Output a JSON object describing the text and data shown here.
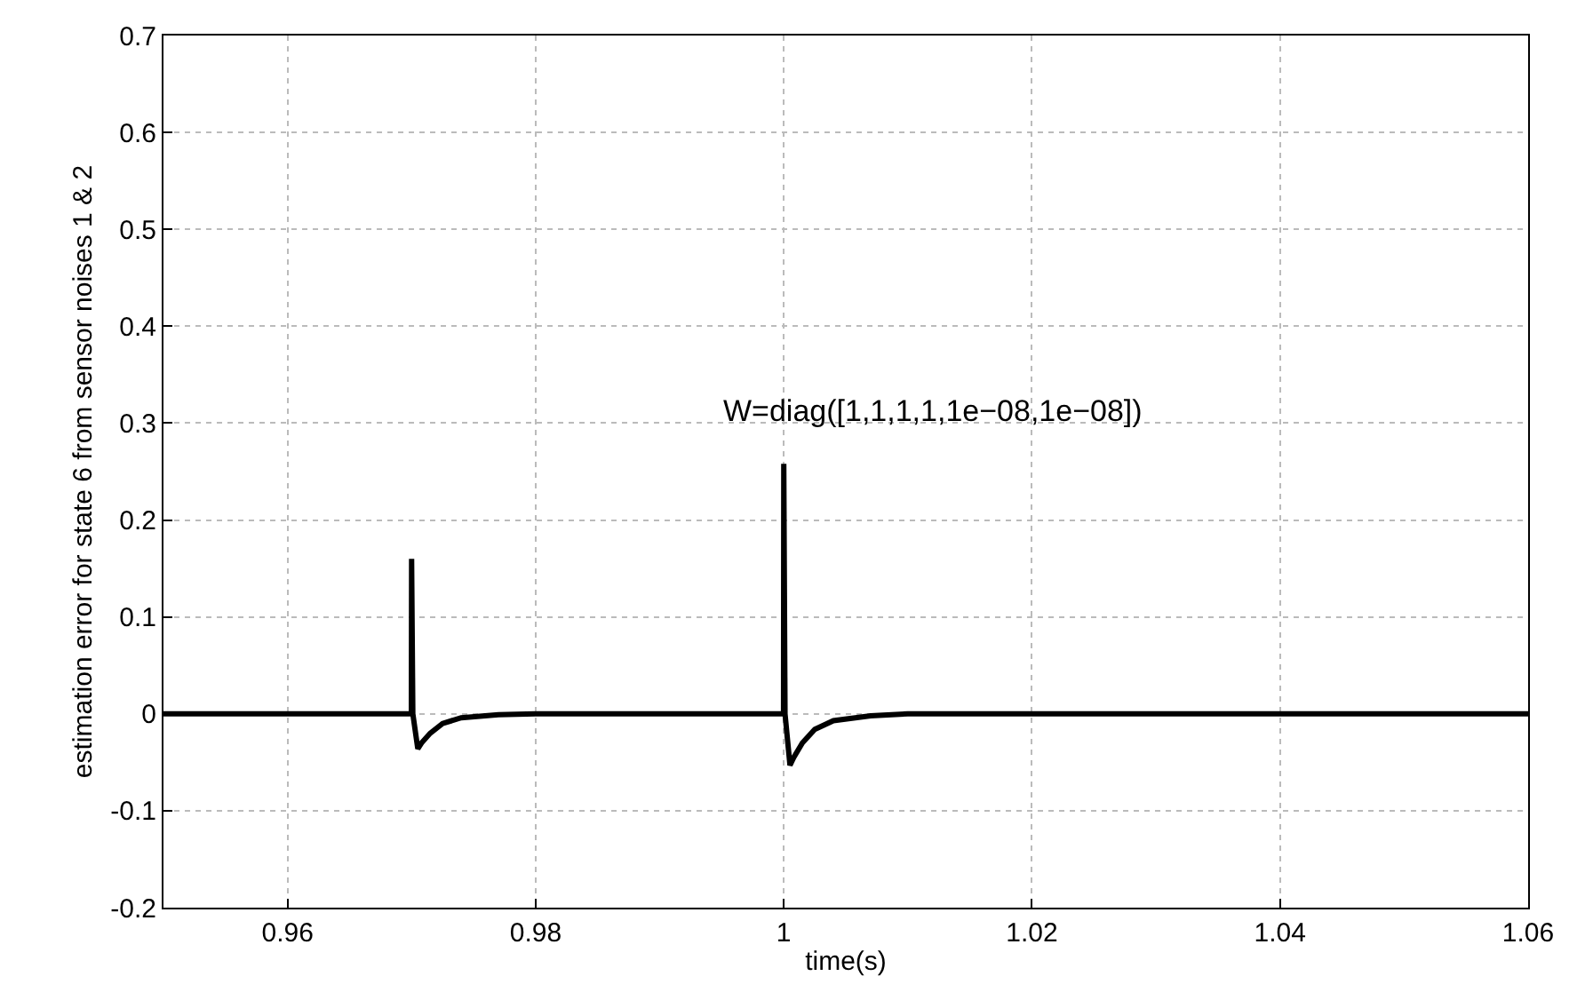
{
  "chart_data": {
    "type": "line",
    "xlabel": "time(s)",
    "ylabel": "estimation error for state 6 from sensor noises 1 & 2",
    "annotations": [
      "W=diag([1,1,1,1,1e−08,1e−08])"
    ],
    "x": [
      0.95,
      0.96998,
      0.97,
      0.9701,
      0.9705,
      0.9708,
      0.9715,
      0.9725,
      0.974,
      0.977,
      0.98,
      0.99998,
      1.0,
      1.0001,
      1.0005,
      1.0008,
      1.0015,
      1.0025,
      1.004,
      1.007,
      1.01,
      1.06
    ],
    "series": [
      {
        "color": "#000000",
        "values": [
          0,
          0,
          0.16,
          0,
          -0.036,
          -0.03,
          -0.02,
          -0.01,
          -0.004,
          -0.001,
          0,
          0,
          0.258,
          0,
          -0.053,
          -0.045,
          -0.03,
          -0.016,
          -0.007,
          -0.002,
          0,
          0
        ]
      }
    ],
    "xlim": [
      0.95,
      1.06
    ],
    "xticks": [
      0.96,
      0.98,
      1,
      1.02,
      1.04,
      1.06
    ],
    "ylim": [
      -0.2,
      0.7
    ],
    "yticks": [
      -0.2,
      -0.1,
      0,
      0.1,
      0.2,
      0.3,
      0.4,
      0.5,
      0.6,
      0.7
    ],
    "grid": true,
    "marker": "none",
    "line_style": "solid"
  }
}
